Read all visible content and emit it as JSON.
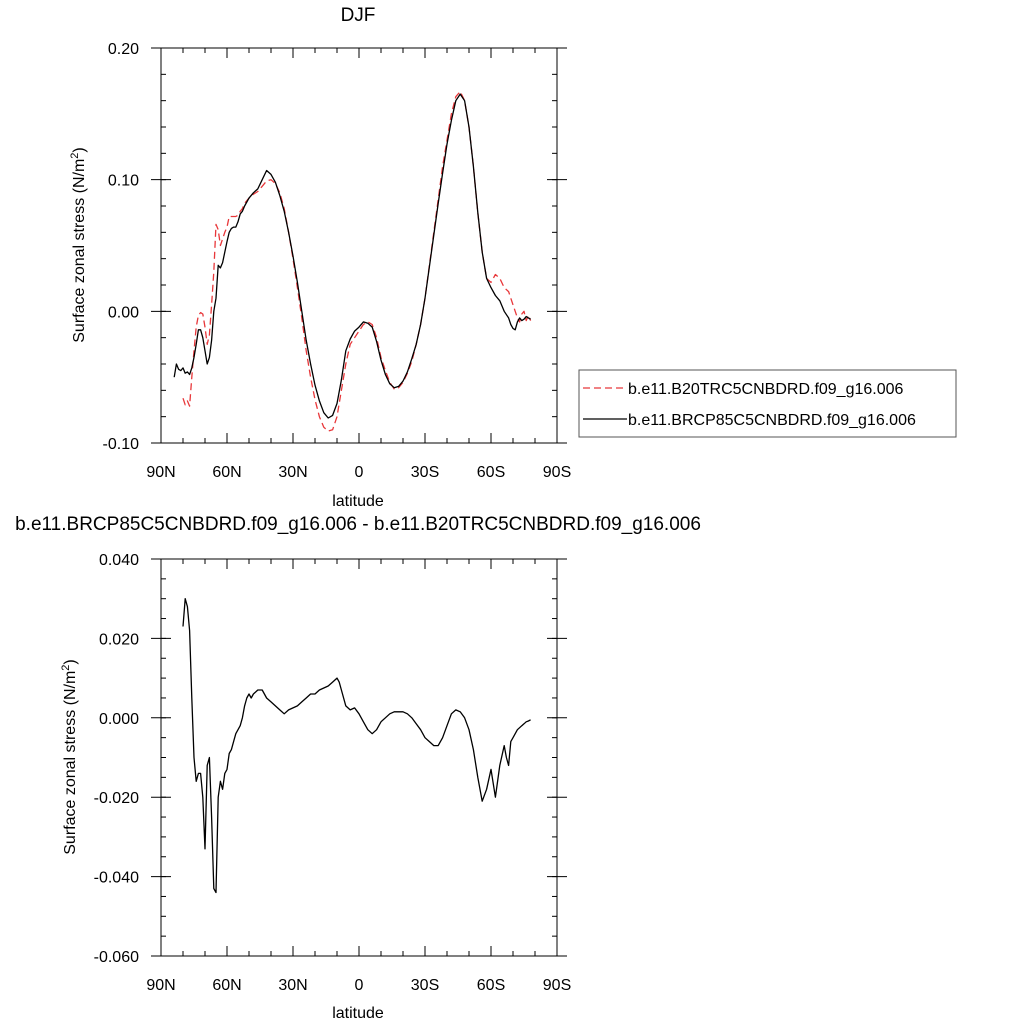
{
  "chart_data": [
    {
      "type": "line",
      "title": "DJF",
      "xlabel": "latitude",
      "ylabel_main": "Surface zonal stress (N/m",
      "ylabel_sup": "2",
      "ylabel_close": ")",
      "xlim": [
        90,
        -90
      ],
      "ylim": [
        -0.1,
        0.2
      ],
      "xticks": [
        {
          "value": 90,
          "label": "90N"
        },
        {
          "value": 60,
          "label": "60N"
        },
        {
          "value": 30,
          "label": "30N"
        },
        {
          "value": 0,
          "label": "0"
        },
        {
          "value": -30,
          "label": "30S"
        },
        {
          "value": -60,
          "label": "60S"
        },
        {
          "value": -90,
          "label": "90S"
        }
      ],
      "yticks": [
        {
          "value": -0.1,
          "label": "-0.10"
        },
        {
          "value": 0.0,
          "label": "0.00"
        },
        {
          "value": 0.1,
          "label": "0.10"
        },
        {
          "value": 0.2,
          "label": "0.20"
        }
      ],
      "legend_position": "right",
      "series": [
        {
          "name": "b.e11.B20TRC5CNBDRD.f09_g16.006",
          "color": "#e8373a",
          "dash": "dashed",
          "x": [
            80,
            79,
            78,
            77,
            76,
            75,
            74,
            73,
            72,
            71,
            70,
            69,
            68,
            67,
            66,
            65,
            64,
            63,
            62,
            61,
            60,
            59,
            58,
            57,
            56,
            55,
            54,
            53,
            52,
            50,
            48,
            46,
            44,
            42,
            40,
            38,
            36,
            34,
            32,
            30,
            28,
            26,
            24,
            22,
            20,
            18,
            16,
            14,
            12,
            10,
            8,
            6,
            4,
            2,
            0,
            -2,
            -4,
            -6,
            -8,
            -10,
            -12,
            -14,
            -16,
            -18,
            -20,
            -22,
            -24,
            -26,
            -28,
            -30,
            -32,
            -34,
            -36,
            -38,
            -40,
            -42,
            -44,
            -46,
            -48,
            -50,
            -52,
            -54,
            -56,
            -58,
            -60,
            -62,
            -64,
            -66,
            -68,
            -69,
            -70,
            -71,
            -72,
            -73,
            -74,
            -75,
            -76,
            -77,
            -78
          ],
          "y": [
            -0.066,
            -0.071,
            -0.068,
            -0.072,
            -0.05,
            -0.03,
            -0.012,
            -0.003,
            -0.001,
            -0.002,
            -0.012,
            -0.025,
            -0.018,
            0.005,
            0.03,
            0.066,
            0.062,
            0.05,
            0.055,
            0.06,
            0.064,
            0.072,
            0.072,
            0.072,
            0.072,
            0.073,
            0.076,
            0.078,
            0.082,
            0.086,
            0.089,
            0.091,
            0.095,
            0.099,
            0.1,
            0.097,
            0.09,
            0.078,
            0.06,
            0.04,
            0.018,
            -0.005,
            -0.03,
            -0.05,
            -0.067,
            -0.08,
            -0.088,
            -0.091,
            -0.09,
            -0.08,
            -0.06,
            -0.04,
            -0.025,
            -0.02,
            -0.015,
            -0.01,
            -0.008,
            -0.01,
            -0.02,
            -0.035,
            -0.045,
            -0.054,
            -0.059,
            -0.058,
            -0.054,
            -0.047,
            -0.038,
            -0.025,
            -0.01,
            0.01,
            0.035,
            0.06,
            0.085,
            0.11,
            0.13,
            0.15,
            0.163,
            0.167,
            0.16,
            0.14,
            0.11,
            0.075,
            0.045,
            0.025,
            0.022,
            0.028,
            0.025,
            0.018,
            0.015,
            0.01,
            0.005,
            0.0,
            -0.005,
            -0.008,
            -0.002,
            0.0,
            -0.007,
            -0.003,
            -0.007
          ]
        },
        {
          "name": "b.e11.BRCP85C5CNBDRD.f09_g16.006",
          "color": "#000000",
          "dash": "solid",
          "x": [
            84,
            83,
            82,
            81,
            80,
            79,
            78,
            77,
            76,
            75,
            74,
            73,
            72,
            71,
            70,
            69,
            68,
            67,
            66,
            65,
            64,
            63,
            62,
            61,
            60,
            59,
            58,
            57,
            56,
            55,
            54,
            53,
            52,
            50,
            48,
            46,
            44,
            42,
            40,
            38,
            36,
            34,
            32,
            30,
            28,
            26,
            24,
            22,
            20,
            18,
            16,
            14,
            12,
            10,
            8,
            6,
            4,
            2,
            0,
            -2,
            -4,
            -6,
            -8,
            -10,
            -12,
            -14,
            -16,
            -18,
            -20,
            -22,
            -24,
            -26,
            -28,
            -30,
            -32,
            -34,
            -36,
            -38,
            -40,
            -42,
            -44,
            -46,
            -48,
            -50,
            -52,
            -54,
            -56,
            -58,
            -60,
            -62,
            -64,
            -66,
            -68,
            -69,
            -70,
            -71,
            -72,
            -73,
            -74,
            -75,
            -76,
            -77,
            -78
          ],
          "y": [
            -0.05,
            -0.04,
            -0.044,
            -0.045,
            -0.043,
            -0.047,
            -0.046,
            -0.048,
            -0.043,
            -0.035,
            -0.025,
            -0.014,
            -0.014,
            -0.02,
            -0.03,
            -0.04,
            -0.035,
            -0.022,
            0.0,
            0.01,
            0.035,
            0.033,
            0.037,
            0.045,
            0.053,
            0.06,
            0.063,
            0.064,
            0.064,
            0.068,
            0.074,
            0.076,
            0.08,
            0.086,
            0.09,
            0.093,
            0.1,
            0.107,
            0.104,
            0.098,
            0.088,
            0.076,
            0.06,
            0.042,
            0.022,
            0.0,
            -0.022,
            -0.04,
            -0.056,
            -0.068,
            -0.077,
            -0.081,
            -0.079,
            -0.07,
            -0.052,
            -0.03,
            -0.021,
            -0.015,
            -0.012,
            -0.008,
            -0.009,
            -0.012,
            -0.023,
            -0.037,
            -0.048,
            -0.055,
            -0.058,
            -0.057,
            -0.053,
            -0.046,
            -0.036,
            -0.025,
            -0.01,
            0.01,
            0.034,
            0.058,
            0.082,
            0.105,
            0.127,
            0.145,
            0.16,
            0.165,
            0.16,
            0.14,
            0.11,
            0.075,
            0.045,
            0.025,
            0.018,
            0.012,
            0.008,
            0.0,
            -0.005,
            -0.01,
            -0.013,
            -0.014,
            -0.008,
            -0.005,
            -0.007,
            -0.006,
            -0.004,
            -0.005,
            -0.006
          ]
        }
      ]
    },
    {
      "type": "line",
      "title": "b.e11.BRCP85C5CNBDRD.f09_g16.006 - b.e11.B20TRC5CNBDRD.f09_g16.006",
      "xlabel": "latitude",
      "ylabel_main": "Surface zonal stress (N/m",
      "ylabel_sup": "2",
      "ylabel_close": ")",
      "xlim": [
        90,
        -90
      ],
      "ylim": [
        -0.06,
        0.04
      ],
      "xticks": [
        {
          "value": 90,
          "label": "90N"
        },
        {
          "value": 60,
          "label": "60N"
        },
        {
          "value": 30,
          "label": "30N"
        },
        {
          "value": 0,
          "label": "0"
        },
        {
          "value": -30,
          "label": "30S"
        },
        {
          "value": -60,
          "label": "60S"
        },
        {
          "value": -90,
          "label": "90S"
        }
      ],
      "yticks": [
        {
          "value": -0.06,
          "label": "-0.060"
        },
        {
          "value": -0.04,
          "label": "-0.040"
        },
        {
          "value": -0.02,
          "label": "-0.020"
        },
        {
          "value": 0.0,
          "label": "0.000"
        },
        {
          "value": 0.02,
          "label": "0.020"
        },
        {
          "value": 0.04,
          "label": "0.040"
        }
      ],
      "series": [
        {
          "color": "#000000",
          "dash": "solid",
          "x": [
            80,
            79,
            78,
            77,
            76,
            75,
            74,
            73,
            72,
            71,
            70,
            69,
            68,
            67,
            66,
            65,
            64,
            63,
            62,
            61,
            60,
            59,
            58,
            57,
            56,
            55,
            54,
            53,
            52,
            51,
            50,
            49,
            48,
            46,
            44,
            42,
            40,
            38,
            36,
            34,
            32,
            30,
            28,
            26,
            24,
            22,
            20,
            18,
            16,
            14,
            12,
            11,
            10,
            9,
            8,
            6,
            4,
            2,
            0,
            -2,
            -4,
            -6,
            -8,
            -10,
            -12,
            -14,
            -16,
            -18,
            -20,
            -22,
            -24,
            -26,
            -28,
            -30,
            -32,
            -34,
            -36,
            -38,
            -40,
            -42,
            -44,
            -46,
            -48,
            -50,
            -52,
            -54,
            -56,
            -58,
            -60,
            -62,
            -64,
            -66,
            -67,
            -68,
            -69,
            -70,
            -71,
            -72,
            -73,
            -74,
            -75,
            -76,
            -77,
            -78
          ],
          "y": [
            0.023,
            0.03,
            0.028,
            0.022,
            0.005,
            -0.01,
            -0.016,
            -0.014,
            -0.014,
            -0.02,
            -0.033,
            -0.012,
            -0.01,
            -0.025,
            -0.043,
            -0.044,
            -0.02,
            -0.016,
            -0.018,
            -0.014,
            -0.013,
            -0.009,
            -0.008,
            -0.006,
            -0.004,
            -0.003,
            -0.002,
            0.0,
            0.003,
            0.005,
            0.006,
            0.005,
            0.006,
            0.007,
            0.007,
            0.005,
            0.004,
            0.003,
            0.002,
            0.001,
            0.002,
            0.0025,
            0.003,
            0.004,
            0.005,
            0.006,
            0.006,
            0.007,
            0.0075,
            0.008,
            0.009,
            0.0095,
            0.01,
            0.009,
            0.007,
            0.003,
            0.002,
            0.0025,
            0.001,
            -0.001,
            -0.003,
            -0.004,
            -0.003,
            -0.001,
            0.0,
            0.001,
            0.0015,
            0.0015,
            0.0015,
            0.001,
            0.0,
            -0.0015,
            -0.003,
            -0.005,
            -0.006,
            -0.007,
            -0.007,
            -0.005,
            -0.002,
            0.001,
            0.002,
            0.0015,
            0.0,
            -0.003,
            -0.008,
            -0.015,
            -0.021,
            -0.018,
            -0.013,
            -0.02,
            -0.012,
            -0.007,
            -0.01,
            -0.012,
            -0.006,
            -0.005,
            -0.004,
            -0.003,
            -0.0025,
            -0.002,
            -0.0015,
            -0.001,
            -0.0008,
            -0.0005
          ]
        }
      ]
    }
  ]
}
